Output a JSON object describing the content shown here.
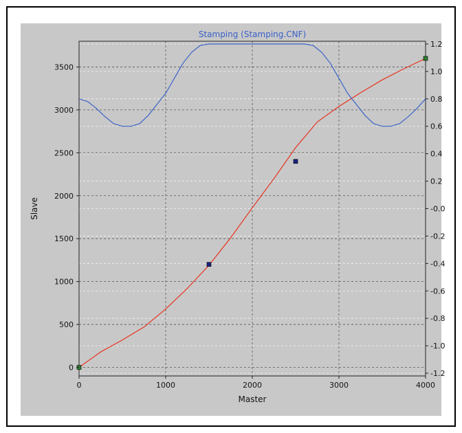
{
  "chart_data": {
    "type": "line",
    "title": "Stamping (Stamping.CNF)",
    "xlabel": "Master",
    "ylabel": "Slave",
    "xlim": [
      0,
      4000
    ],
    "ylim": [
      -100,
      3800
    ],
    "y2lim": [
      -1.22,
      1.22
    ],
    "x_ticks": [
      "0",
      "1000",
      "2000",
      "3000",
      "4000"
    ],
    "y_ticks": [
      "0",
      "500",
      "1000",
      "1500",
      "2000",
      "2500",
      "3000",
      "3500"
    ],
    "y2_ticks": [
      "-1.2",
      "-1.0",
      "-0.8",
      "-0.6",
      "-0.4",
      "-0.2",
      "-0.0",
      "0.2",
      "0.4",
      "0.6",
      "0.8",
      "1.0",
      "1.2"
    ],
    "grid": true,
    "colors": {
      "position": "#e8321e",
      "velocity": "#3c64c8",
      "title": "#3a5fc8",
      "panel": "#c8c8c8"
    },
    "series": [
      {
        "axis": "left",
        "x": [
          0,
          250,
          500,
          750,
          1000,
          1250,
          1500,
          1750,
          2000,
          2250,
          2500,
          2750,
          3000,
          3250,
          3500,
          3750,
          4000
        ],
        "values": [
          0,
          180,
          320,
          470,
          680,
          920,
          1190,
          1510,
          1860,
          2200,
          2560,
          2860,
          3040,
          3200,
          3350,
          3480,
          3600
        ]
      },
      {
        "axis": "right",
        "x": [
          0,
          100,
          200,
          300,
          400,
          500,
          600,
          700,
          800,
          900,
          1000,
          1100,
          1200,
          1300,
          1400,
          1500,
          1600,
          1800,
          2000,
          2200,
          2400,
          2500,
          2600,
          2700,
          2800,
          2900,
          3000,
          3100,
          3200,
          3300,
          3400,
          3500,
          3600,
          3700,
          3800,
          3900,
          4000
        ],
        "values": [
          0.8,
          0.78,
          0.73,
          0.67,
          0.62,
          0.6,
          0.6,
          0.62,
          0.68,
          0.76,
          0.84,
          0.95,
          1.06,
          1.14,
          1.19,
          1.2,
          1.2,
          1.2,
          1.2,
          1.2,
          1.2,
          1.2,
          1.2,
          1.19,
          1.14,
          1.06,
          0.95,
          0.84,
          0.76,
          0.68,
          0.62,
          0.6,
          0.6,
          0.62,
          0.67,
          0.73,
          0.8
        ]
      }
    ],
    "markers": [
      {
        "x": 0,
        "y": 0,
        "color": "#2e7d32"
      },
      {
        "x": 1500,
        "y": 1200,
        "color": "#1a237e"
      },
      {
        "x": 2500,
        "y": 2400,
        "color": "#1a237e"
      },
      {
        "x": 4000,
        "y": 3600,
        "color": "#2e7d32"
      }
    ]
  }
}
